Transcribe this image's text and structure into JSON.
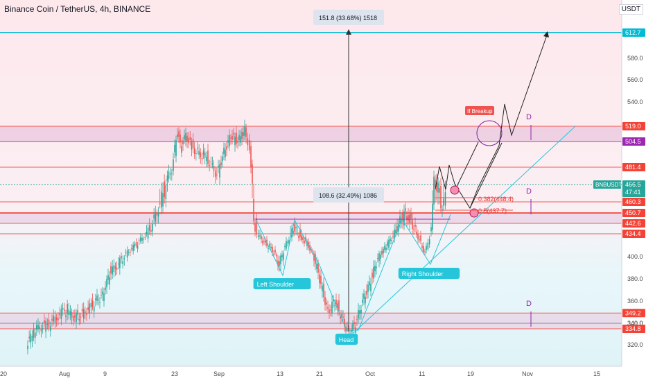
{
  "chart": {
    "title": "Binance Coin / TetherUS, 4h, BINANCE",
    "currency": "USDT",
    "symbol": "BNBUSDT"
  },
  "chart_data": {
    "type": "candlestick",
    "ylim": [
      300,
      640
    ],
    "y_ticks": [
      320.0,
      340.0,
      360.0,
      380.0,
      400.0,
      540.0,
      560.0,
      580.0
    ],
    "x_ticks": [
      "20",
      "Aug",
      "9",
      "23",
      "Sep",
      "13",
      "21",
      "Oct",
      "11",
      "19",
      "Nov",
      "15"
    ],
    "horizontal_levels": [
      {
        "value": 612.7,
        "label": "612.7",
        "color": "#00bcd4"
      },
      {
        "value": 519.0,
        "label": "519.0",
        "color": "#f44336"
      },
      {
        "value": 504.5,
        "label": "504.5",
        "color": "#9c27b0"
      },
      {
        "value": 481.4,
        "label": "481.4",
        "color": "#f44336"
      },
      {
        "value": 460.3,
        "label": "460.3",
        "color": "#f44336"
      },
      {
        "value": 450.7,
        "label": "450.7",
        "color": "#f44336"
      },
      {
        "value": 442.6,
        "label": "442.6",
        "color": "#f44336"
      },
      {
        "value": 434.4,
        "label": "434.4",
        "color": "#f44336"
      },
      {
        "value": 349.2,
        "label": "349.2",
        "color": "#f44336"
      },
      {
        "value": 340.0,
        "label": "340.0",
        "color": "#787b86"
      },
      {
        "value": 334.8,
        "label": "334.8",
        "color": "#f44336"
      }
    ],
    "last_price": {
      "value": 466.5,
      "label": "466.5",
      "timer": "47:41"
    },
    "measurements": [
      {
        "label": "151.8 (33.68%) 1518"
      },
      {
        "label": "108.6 (32.49%) 1086"
      }
    ],
    "fib_levels": [
      {
        "label": "0.382(448.4)"
      },
      {
        "label": "0.5(437.7)"
      }
    ],
    "annotations": {
      "left_shoulder": "Left Shoulder",
      "head": "Head",
      "right_shoulder": "Right Shoulder",
      "breakout": "If Breakup",
      "d_marker": "D"
    },
    "candles": []
  },
  "colors": {
    "up": "#26a69a",
    "down": "#ef5350",
    "band_red": "#f8bbd0",
    "band_purple": "#e1bee7",
    "teal": "#26a69a"
  }
}
